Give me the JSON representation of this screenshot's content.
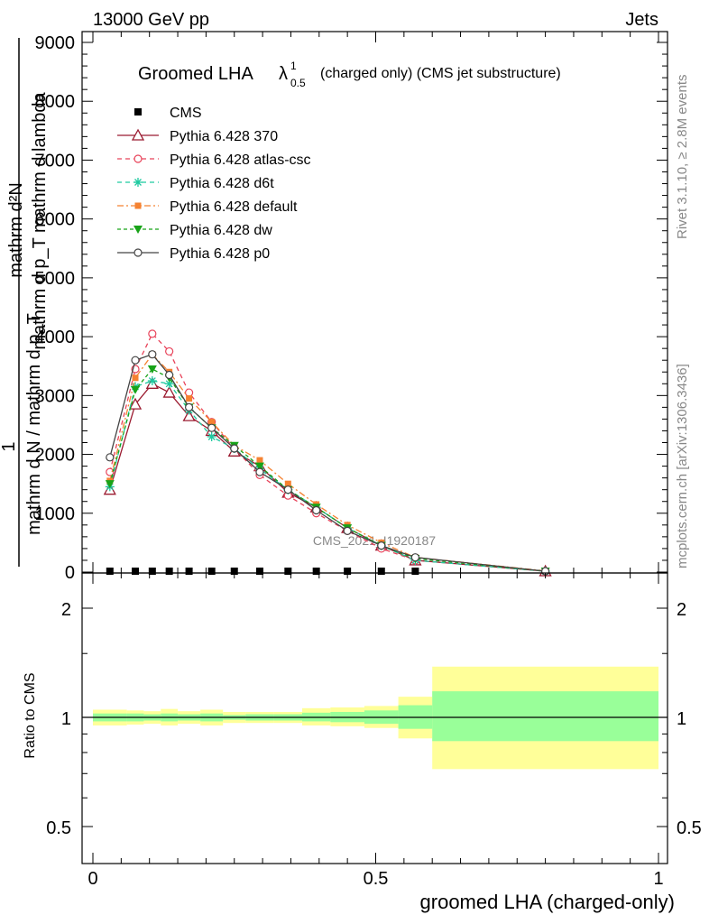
{
  "header": {
    "left": "13000 GeV pp",
    "right": "Jets"
  },
  "side_text": {
    "rivet": "Rivet 3.1.10, ≥ 2.8M events",
    "mcplots": "mcplots.cern.ch [arXiv:1306.3436]"
  },
  "watermark": "CMS_2021_I1920187",
  "colors": {
    "cms": "#000000",
    "p370": "#9b1b30",
    "atlas": "#e8435a",
    "d6t": "#1ec9a0",
    "default": "#f58231",
    "dw": "#18a318",
    "p0": "#444444",
    "band_inner": "#99ff99",
    "band_outer": "#ffff99"
  },
  "chart_data": [
    {
      "type": "line",
      "title_main": "Groomed LHA",
      "title_lambda": "λ",
      "title_sup": "1",
      "title_sub": "0.5",
      "title_rest": "(charged only) (CMS jet substructure)",
      "ylabel_upper": "mathrm d²N",
      "ylabel_upper2": "mathrm d p_T mathrm d lambda",
      "ylabel_lower": "mathrm d N / mathrm d p_T",
      "ylabel_one": "1",
      "xlim": [
        0,
        1
      ],
      "ylim": [
        0,
        9000
      ],
      "y_ticks": [
        0,
        1000,
        2000,
        3000,
        4000,
        5000,
        6000,
        7000,
        8000,
        9000
      ],
      "y_tick_labels": [
        "0",
        "1000",
        "2000",
        "3000",
        "4000",
        "5000",
        "6000",
        "7000",
        "8000",
        "9000"
      ],
      "x": [
        0.03,
        0.075,
        0.105,
        0.135,
        0.17,
        0.21,
        0.25,
        0.295,
        0.345,
        0.395,
        0.45,
        0.51,
        0.57,
        0.8
      ],
      "series": [
        {
          "name": "CMS",
          "key": "cms",
          "marker": "square",
          "values": [
            0,
            0,
            0,
            0,
            0,
            0,
            0,
            0,
            0,
            0,
            0,
            0,
            0,
            null
          ]
        },
        {
          "name": "Pythia 6.428 370",
          "key": "p370",
          "marker": "triangle-open",
          "dash": "",
          "values": [
            1400,
            2850,
            3200,
            3050,
            2650,
            2400,
            2050,
            1800,
            1350,
            1100,
            750,
            450,
            200,
            15
          ]
        },
        {
          "name": "Pythia 6.428 atlas-csc",
          "key": "atlas",
          "marker": "circle-open",
          "dash": "5,4",
          "values": [
            1700,
            3450,
            4050,
            3750,
            3050,
            2550,
            2100,
            1650,
            1300,
            1000,
            700,
            400,
            200,
            15
          ]
        },
        {
          "name": "Pythia 6.428 d6t",
          "key": "d6t",
          "marker": "star",
          "dash": "5,4",
          "values": [
            1450,
            3150,
            3250,
            3200,
            2750,
            2300,
            2100,
            1750,
            1400,
            1100,
            750,
            450,
            200,
            15
          ]
        },
        {
          "name": "Pythia 6.428 default",
          "key": "default",
          "marker": "square-filled",
          "dash": "7,3,2,3",
          "values": [
            1550,
            3300,
            3700,
            3400,
            2950,
            2550,
            2150,
            1900,
            1500,
            1150,
            800,
            500,
            250,
            20
          ]
        },
        {
          "name": "Pythia 6.428 dw",
          "key": "dw",
          "marker": "triangle-down",
          "dash": "4,3",
          "values": [
            1500,
            3100,
            3450,
            3300,
            2800,
            2450,
            2150,
            1800,
            1400,
            1100,
            750,
            450,
            230,
            15
          ]
        },
        {
          "name": "Pythia 6.428 p0",
          "key": "p0",
          "marker": "circle-open",
          "dash": "",
          "values": [
            1950,
            3600,
            3700,
            3350,
            2800,
            2450,
            2100,
            1700,
            1400,
            1050,
            700,
            450,
            250,
            15
          ]
        }
      ]
    },
    {
      "type": "area",
      "ylabel": "Ratio to CMS",
      "xlabel": "groomed LHA (charged-only)",
      "xlim": [
        0,
        1
      ],
      "ylim": [
        0.4,
        2.3
      ],
      "y_scale": "log",
      "x_ticks": [
        0,
        0.5,
        1
      ],
      "x_tick_labels": [
        "0",
        "0.5",
        "1"
      ],
      "y_ticks": [
        0.5,
        1,
        2
      ],
      "y_tick_labels": [
        "0.5",
        "1",
        "2"
      ],
      "bins": [
        {
          "lo": 0.0,
          "hi": 0.06,
          "inner": [
            0.975,
            1.025
          ],
          "outer": [
            0.95,
            1.05
          ]
        },
        {
          "lo": 0.06,
          "hi": 0.09,
          "inner": [
            0.975,
            1.025
          ],
          "outer": [
            0.955,
            1.045
          ]
        },
        {
          "lo": 0.09,
          "hi": 0.12,
          "inner": [
            0.98,
            1.02
          ],
          "outer": [
            0.96,
            1.04
          ]
        },
        {
          "lo": 0.12,
          "hi": 0.15,
          "inner": [
            0.975,
            1.025
          ],
          "outer": [
            0.95,
            1.055
          ]
        },
        {
          "lo": 0.15,
          "hi": 0.19,
          "inner": [
            0.98,
            1.02
          ],
          "outer": [
            0.96,
            1.04
          ]
        },
        {
          "lo": 0.19,
          "hi": 0.23,
          "inner": [
            0.975,
            1.025
          ],
          "outer": [
            0.95,
            1.05
          ]
        },
        {
          "lo": 0.23,
          "hi": 0.27,
          "inner": [
            0.985,
            1.015
          ],
          "outer": [
            0.965,
            1.035
          ]
        },
        {
          "lo": 0.27,
          "hi": 0.32,
          "inner": [
            0.98,
            1.02
          ],
          "outer": [
            0.965,
            1.035
          ]
        },
        {
          "lo": 0.32,
          "hi": 0.37,
          "inner": [
            0.98,
            1.02
          ],
          "outer": [
            0.965,
            1.035
          ]
        },
        {
          "lo": 0.37,
          "hi": 0.42,
          "inner": [
            0.975,
            1.03
          ],
          "outer": [
            0.95,
            1.06
          ]
        },
        {
          "lo": 0.42,
          "hi": 0.48,
          "inner": [
            0.97,
            1.035
          ],
          "outer": [
            0.945,
            1.065
          ]
        },
        {
          "lo": 0.48,
          "hi": 0.54,
          "inner": [
            0.96,
            1.045
          ],
          "outer": [
            0.935,
            1.075
          ]
        },
        {
          "lo": 0.54,
          "hi": 0.6,
          "inner": [
            0.93,
            1.08
          ],
          "outer": [
            0.875,
            1.14
          ]
        },
        {
          "lo": 0.6,
          "hi": 1.0,
          "inner": [
            0.86,
            1.18
          ],
          "outer": [
            0.72,
            1.38
          ]
        }
      ]
    }
  ]
}
